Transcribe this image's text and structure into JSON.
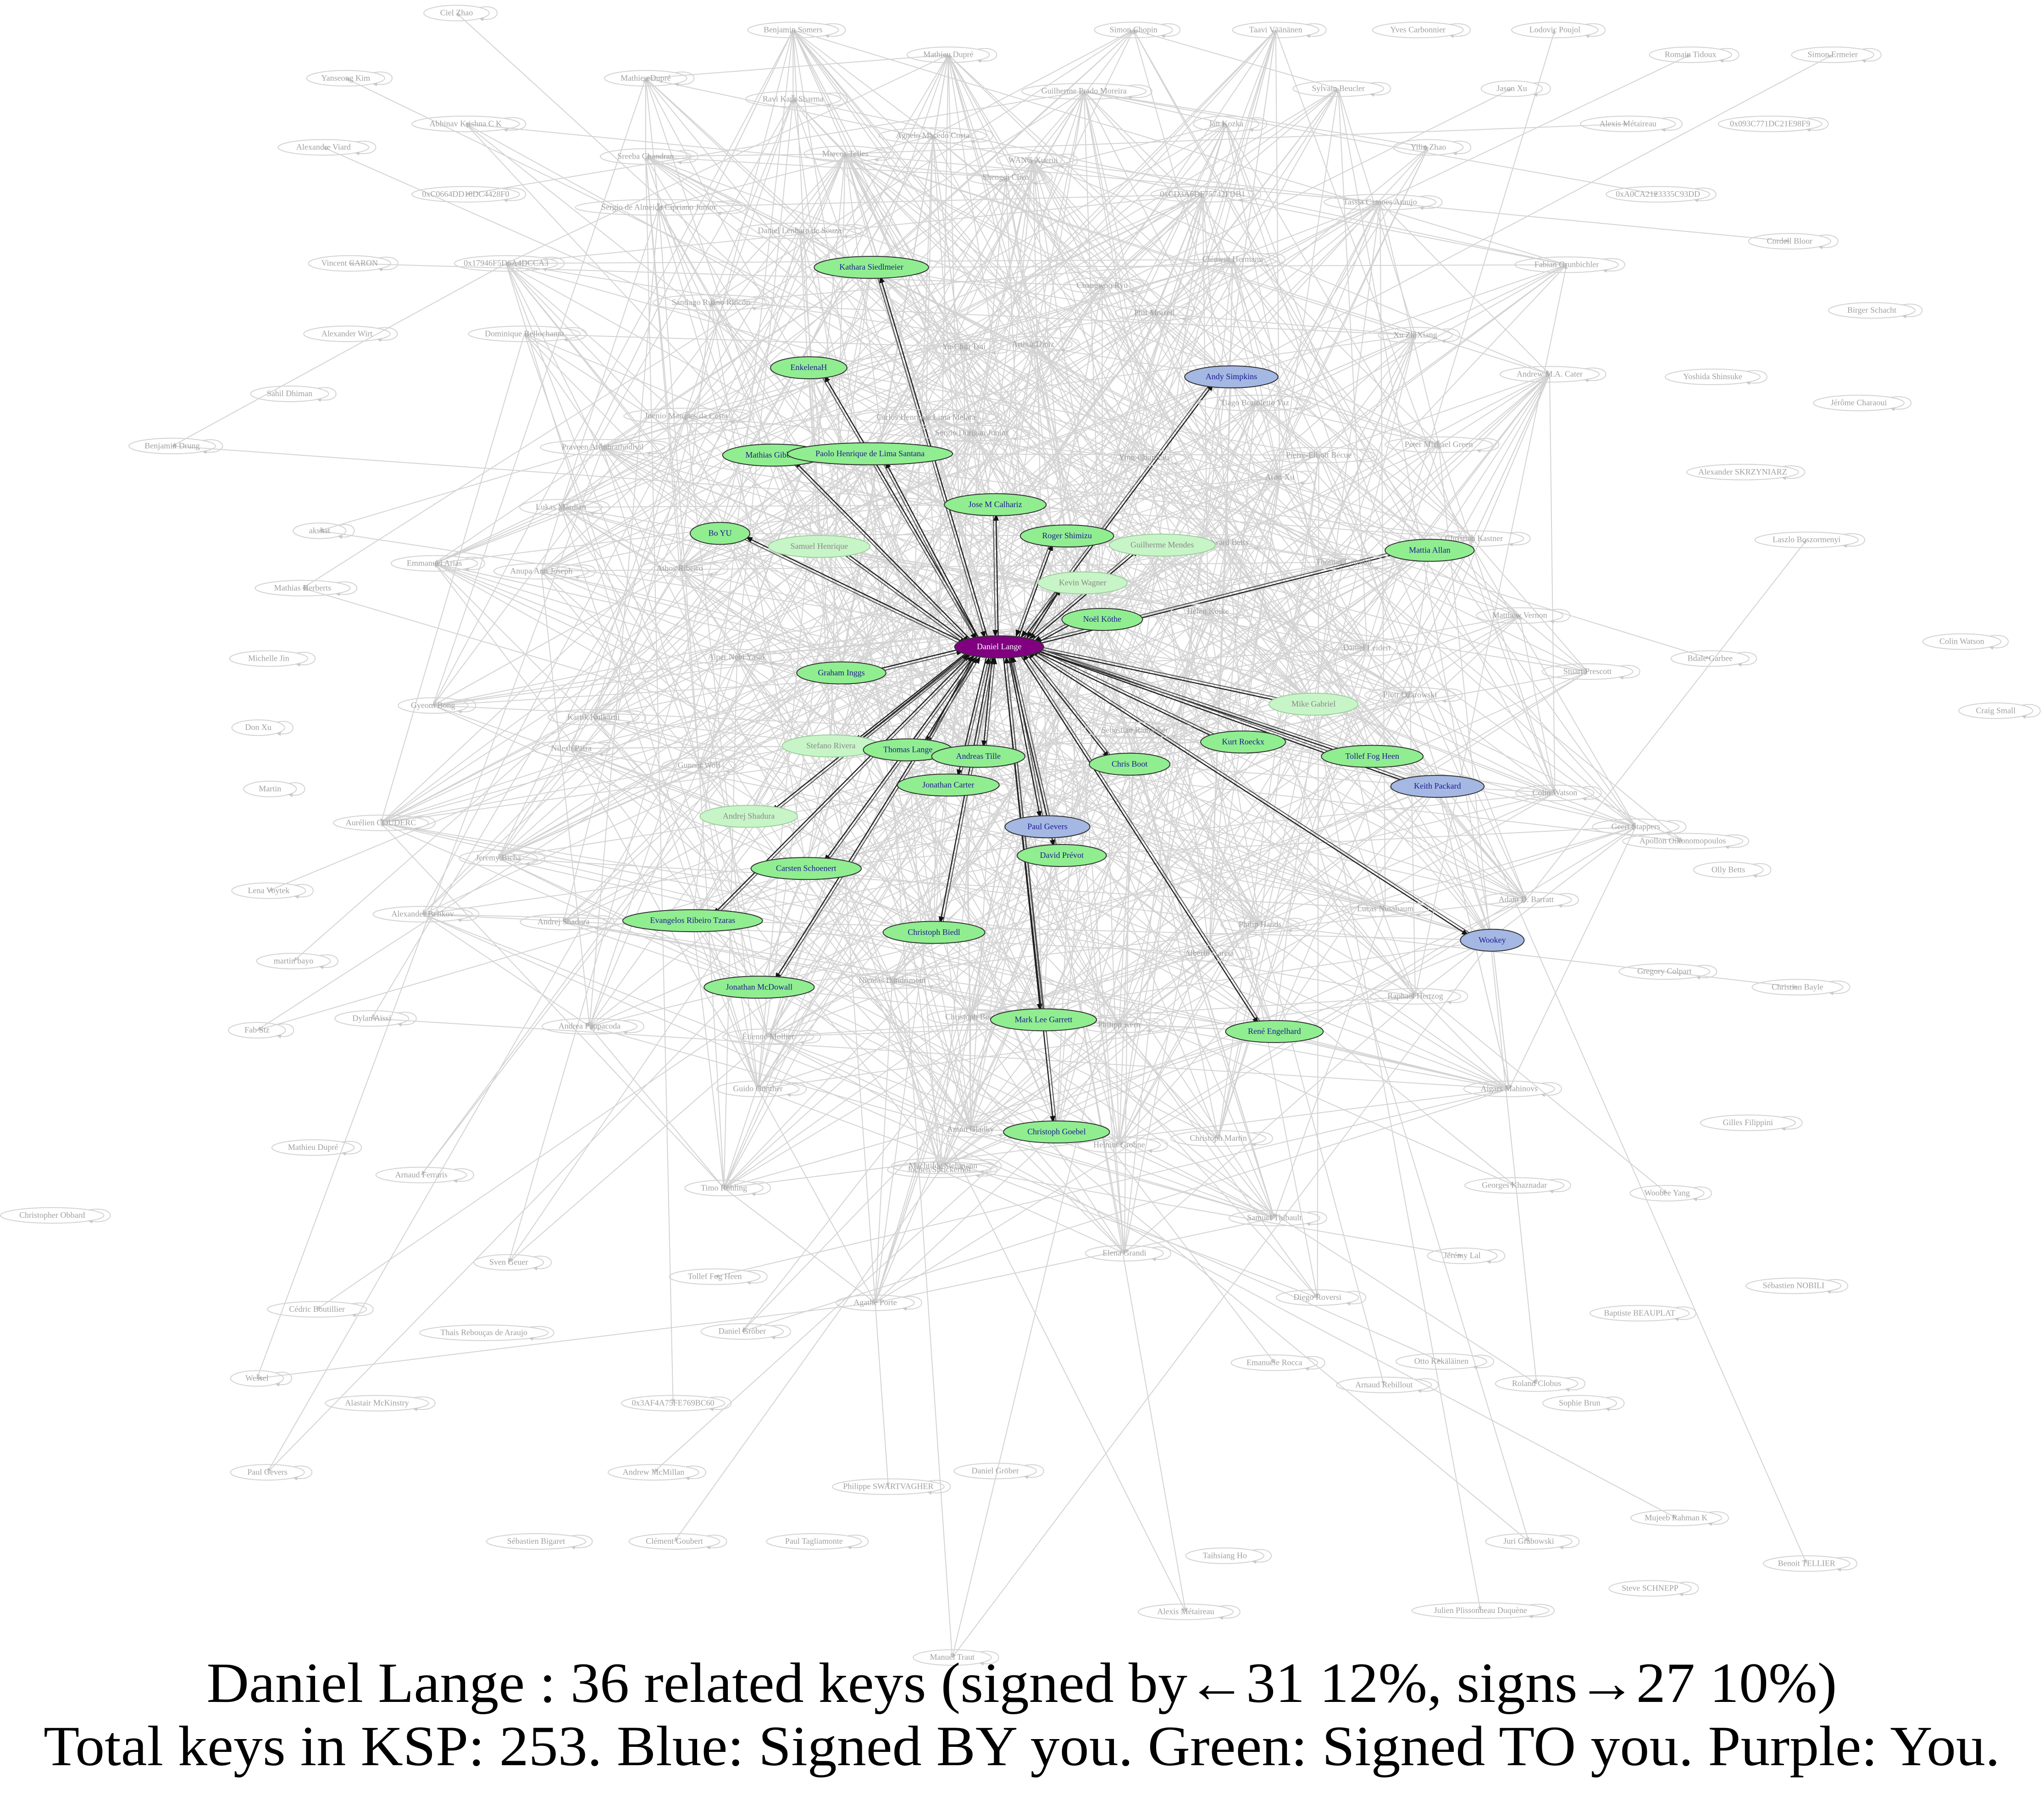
{
  "nodes": [
    {
      "label": "Ciel Zhao"
    },
    {
      "label": "Benjamin Somers"
    },
    {
      "label": "Simon Chopin"
    },
    {
      "label": "Taavi Väänänen"
    },
    {
      "label": "Yves Carbonnier"
    },
    {
      "label": "Lodovic Poujol"
    },
    {
      "label": "Yanseong Kim"
    },
    {
      "label": "Mathieu Dupré"
    },
    {
      "label": "Mathieu Dupré"
    },
    {
      "label": "Romain Tidoux"
    },
    {
      "label": "Simon Ermeier"
    },
    {
      "label": "Guilherme Prado Moreira"
    },
    {
      "label": "Sylvain Beucler"
    },
    {
      "label": "Jason Xu"
    },
    {
      "label": "Ravi Kant Sharma"
    },
    {
      "label": "Abhinav Krishna C K"
    },
    {
      "label": "Jan Kozka"
    },
    {
      "label": "Alexis Métaireau"
    },
    {
      "label": "0x093C771DC21E98F9"
    },
    {
      "label": "Agnelo Macedo Costa"
    },
    {
      "label": "Alexandre Viard"
    },
    {
      "label": "Marcos Telles"
    },
    {
      "label": "Yilin Zhao"
    },
    {
      "label": "Sreeba Chandran"
    },
    {
      "label": "WANG Xuerui"
    },
    {
      "label": "Shengqi Chen"
    },
    {
      "label": "0xC0664DD18DC4428F0"
    },
    {
      "label": "0xCD3A6DF75742FDB1"
    },
    {
      "label": "0xA0CA2123335C93DD"
    },
    {
      "label": "Tassia Camoes Araujo"
    },
    {
      "label": "Sergio de Almeida Cipriano Junior"
    },
    {
      "label": "Daniel Lenharo de Souza"
    },
    {
      "label": "Cordell Bloor"
    },
    {
      "label": "Clément Hermann"
    },
    {
      "label": "Vincent CARON"
    },
    {
      "label": "0x17946F5D6A4DCCA3"
    },
    {
      "label": "Fabian Grunbichler"
    },
    {
      "label": "Changwoo Ryu"
    },
    {
      "label": "Santiago Ruano Rincón"
    },
    {
      "label": "Phil Morrell"
    },
    {
      "label": "Birger Schacht"
    },
    {
      "label": "Alexander Wirt"
    },
    {
      "label": "Dominique Bellochamu"
    },
    {
      "label": "Xu ZhiXiang"
    },
    {
      "label": "Yu-Chin Tsai"
    },
    {
      "label": "Arthur Diniz"
    },
    {
      "label": "Andrew M.A. Cater"
    },
    {
      "label": "Yoshida Shinsuke"
    },
    {
      "label": "Tiago Bortoletto Vaz"
    },
    {
      "label": "Sahil Dhiman"
    },
    {
      "label": "Jérôme Charaoui"
    },
    {
      "label": "Joenio Marques da Costa"
    },
    {
      "label": "Carlos Henrique Lima Melara"
    },
    {
      "label": "Sergio Durigan Junior"
    },
    {
      "label": "Benjamin Drung"
    },
    {
      "label": "Praveen Arimbrathodiyil"
    },
    {
      "label": "Pierre-Elliott Bécue"
    },
    {
      "label": "Peter Michael Green"
    },
    {
      "label": "Ying-Chun Liu"
    },
    {
      "label": "Alexander SKRZYNIARZ"
    },
    {
      "label": "Lukas Märdian"
    },
    {
      "label": "Aron Xu"
    },
    {
      "label": "akshat"
    },
    {
      "label": "Christian Kastner"
    },
    {
      "label": "Laszlo Boszormenyi"
    },
    {
      "label": "Edward Betts"
    },
    {
      "label": "Emmanuel Arias"
    },
    {
      "label": "Anupa Ann Joseph"
    },
    {
      "label": "Athos Ribeiro"
    },
    {
      "label": "Thomas Goirand"
    },
    {
      "label": "Mathias Herberts"
    },
    {
      "label": "Helen Koike"
    },
    {
      "label": "Matthew Vernon"
    },
    {
      "label": "Daniel Leidert"
    },
    {
      "label": "Michelle Jin"
    },
    {
      "label": "Colin Watson"
    },
    {
      "label": "Bdale Garbee"
    },
    {
      "label": "Alper Nebi Yasak"
    },
    {
      "label": "Stuart Prescott"
    },
    {
      "label": "Gyeom Bong"
    },
    {
      "label": "Piotr Ożarowski"
    },
    {
      "label": "Kartik Kulkarni"
    },
    {
      "label": "Don Xu"
    },
    {
      "label": "Craig Small"
    },
    {
      "label": "Nilesh Patra"
    },
    {
      "label": "Gunnar Wolf"
    },
    {
      "label": "Colin Watson"
    },
    {
      "label": "Martin"
    },
    {
      "label": "Aurélien COUDERC"
    },
    {
      "label": "Geert Stappers"
    },
    {
      "label": "Apollon Oikonomopoulos"
    },
    {
      "label": "Jeremy Bicha"
    },
    {
      "label": "Olly Betts"
    },
    {
      "label": "Lena Voytek"
    },
    {
      "label": "Adam D. Barratt"
    },
    {
      "label": "Alexander Belikov"
    },
    {
      "label": "Andrej Shadura"
    },
    {
      "label": "martin bayo"
    },
    {
      "label": "Gregory Colpart"
    },
    {
      "label": "Christian Bayle"
    },
    {
      "label": "Dylan Aïssi"
    },
    {
      "label": "Andrea Pappacoda"
    },
    {
      "label": "Fab Stz"
    },
    {
      "label": "Mathieu Dupré"
    },
    {
      "label": "Christopher Obbard"
    },
    {
      "label": "Arnaud Ferraris"
    },
    {
      "label": "Gilles Filippini"
    },
    {
      "label": "Aigars Mahinovs"
    },
    {
      "label": "Woobee Yang"
    },
    {
      "label": "Georges Khaznadar"
    },
    {
      "label": "Jérémy Lal"
    },
    {
      "label": "Sven Geuer"
    },
    {
      "label": "Tollef Fog Heen"
    },
    {
      "label": "Cédric Boutillier"
    },
    {
      "label": "Thais Rebouças de Araujo"
    },
    {
      "label": "Daniel Gröber"
    },
    {
      "label": "Agathe Porte"
    },
    {
      "label": "Sébastien NOBILI"
    },
    {
      "label": "Baptiste BEAUPLAT"
    },
    {
      "label": "Emanuele Rocca"
    },
    {
      "label": "Otto Kekäläinen"
    },
    {
      "label": "Arnaud Rebillout"
    },
    {
      "label": "Roland Clobus"
    },
    {
      "label": "Sophie Brun"
    },
    {
      "label": "Wessel"
    },
    {
      "label": "Alastair McKinstry"
    },
    {
      "label": "0x3AF4A75FE769BC60"
    },
    {
      "label": "Paul Gevers"
    },
    {
      "label": "Andrew McMillan"
    },
    {
      "label": "Philippe SWARTVAGHER"
    },
    {
      "label": "Daniel Gröber"
    },
    {
      "label": "Sébastien Bigaret"
    },
    {
      "label": "Clément Goubert"
    },
    {
      "label": "Paul Tagliamonte"
    },
    {
      "label": "Taihsiang Ho"
    },
    {
      "label": "Juri Grabowski"
    },
    {
      "label": "Mujeeb Rahman K"
    },
    {
      "label": "Steve SCHNEPP"
    },
    {
      "label": "Alexis Métaireau"
    },
    {
      "label": "Julien Plissonneau Duquène"
    },
    {
      "label": "Benoit TELLIER"
    },
    {
      "label": "Manuel Traut"
    },
    {
      "label": "Elena Grandi"
    },
    {
      "label": "Diego Roversi"
    },
    {
      "label": "Samuel Thibault"
    },
    {
      "label": "Christoph Martin"
    },
    {
      "label": "Timo Röhling"
    },
    {
      "label": "Guido Günther"
    },
    {
      "label": "Jochen Sprickerhof"
    },
    {
      "label": "Helmut Grohne"
    },
    {
      "label": "Philipp Kern"
    },
    {
      "label": "Nicolas Dandrimont"
    },
    {
      "label": "Christoph Berg"
    },
    {
      "label": "Étienne Mollier"
    },
    {
      "label": "Alberto Garcia"
    },
    {
      "label": "Raphaël Hertzog"
    },
    {
      "label": "Anton Gladky"
    },
    {
      "label": "Mechtilde Stehmann"
    },
    {
      "label": "Lucas Nussbaum"
    },
    {
      "label": "Philip Hands"
    },
    {
      "label": "Sebastian Ramacher"
    },
    {
      "label": "Kathara Siedlmeier",
      "color": "#90ee90"
    },
    {
      "label": "EnkelenaH",
      "color": "#90ee90"
    },
    {
      "label": "Mathias Gibbens",
      "color": "#90ee90"
    },
    {
      "label": "Paolo Henrique de Lima Santana",
      "color": "#90ee90"
    },
    {
      "label": "Jose M Calhariz",
      "color": "#90ee90"
    },
    {
      "label": "Bo YU",
      "color": "#90ee90"
    },
    {
      "label": "Samuel Henrique",
      "color": "#c8f5c8"
    },
    {
      "label": "Roger Shimizu",
      "color": "#90ee90"
    },
    {
      "label": "Guilherme Mendes",
      "color": "#c8f5c8"
    },
    {
      "label": "Kevin Wagner",
      "color": "#c8f5c8"
    },
    {
      "label": "Mattia Allan",
      "color": "#90ee90"
    },
    {
      "label": "Noël Köthe",
      "color": "#90ee90"
    },
    {
      "label": "Daniel Lange",
      "color": "#800080"
    },
    {
      "label": "Graham Inggs",
      "color": "#90ee90"
    },
    {
      "label": "Mike Gabriel",
      "color": "#c8f5c8"
    },
    {
      "label": "Stefano Rivera",
      "color": "#c8f5c8"
    },
    {
      "label": "Thomas Lange",
      "color": "#90ee90"
    },
    {
      "label": "Andreas Tille",
      "color": "#90ee90"
    },
    {
      "label": "Chris Boot",
      "color": "#90ee90"
    },
    {
      "label": "Kurt Roeckx",
      "color": "#90ee90"
    },
    {
      "label": "Tollef Fog Heen",
      "color": "#90ee90"
    },
    {
      "label": "Keith Packard",
      "color": "#a4b8e3"
    },
    {
      "label": "Jonathan Carter",
      "color": "#90ee90"
    },
    {
      "label": "Andrej Shadura",
      "color": "#c8f5c8"
    },
    {
      "label": "Paul Gevers",
      "color": "#a4b8e3"
    },
    {
      "label": "David Prévot",
      "color": "#90ee90"
    },
    {
      "label": "Carsten Schoenert",
      "color": "#90ee90"
    },
    {
      "label": "Evangelos Ribeiro Tzaras",
      "color": "#90ee90"
    },
    {
      "label": "Christoph Biedl",
      "color": "#90ee90"
    },
    {
      "label": "Wookey",
      "color": "#a4b8e3"
    },
    {
      "label": "Jonathan McDowall",
      "color": "#90ee90"
    },
    {
      "label": "Mark Lee Garrett",
      "color": "#90ee90"
    },
    {
      "label": "René Engelhard",
      "color": "#90ee90"
    },
    {
      "label": "Christoph Goebel",
      "color": "#90ee90"
    },
    {
      "label": "Andy Simpkins",
      "color": "#a4b8e3"
    }
  ],
  "caption": [
    "Daniel Lange : 36 related keys (signed by←31 12%, signs→27 10%)",
    "Total keys in KSP: 253. Blue: Signed BY you. Green: Signed TO you. Purple: You."
  ]
}
